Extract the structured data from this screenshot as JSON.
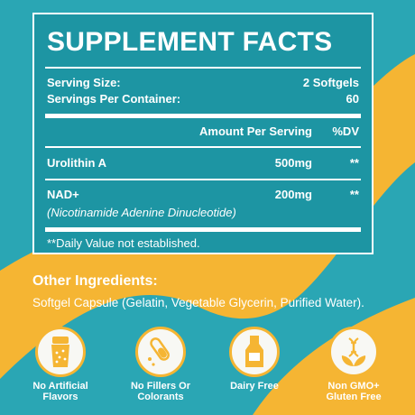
{
  "colors": {
    "teal": "#2aa6b4",
    "panel": "#1d95a3",
    "orange": "#f5b533",
    "white": "#ffffff"
  },
  "facts": {
    "title": "SUPPLEMENT FACTS",
    "serving_size_label": "Serving Size:",
    "serving_size_value": "2 Softgels",
    "servings_label": "Servings Per Container:",
    "servings_value": "60",
    "amount_header": "Amount Per Serving",
    "dv_header": "%DV",
    "ingredients": [
      {
        "name": "Urolithin A",
        "amount": "500mg",
        "dv": "**"
      },
      {
        "name": "NAD+",
        "subname": "(Nicotinamide Adenine Dinucleotide)",
        "amount": "200mg",
        "dv": "**"
      }
    ],
    "footnote": "**Daily Value not established."
  },
  "other": {
    "title": "Other Ingredients:",
    "text": "Softgel Capsule (Gelatin, Vegetable Glycerin, Purified Water)."
  },
  "badges": [
    {
      "icon": "salt-shaker-icon",
      "label_line1": "No Artificial",
      "label_line2": "Flavors"
    },
    {
      "icon": "test-tube-icon",
      "label_line1": "No Fillers Or",
      "label_line2": "Colorants"
    },
    {
      "icon": "milk-bottle-icon",
      "label_line1": "Dairy Free",
      "label_line2": ""
    },
    {
      "icon": "dna-leaf-icon",
      "label_line1": "Non GMO+",
      "label_line2": "Gluten Free"
    }
  ]
}
